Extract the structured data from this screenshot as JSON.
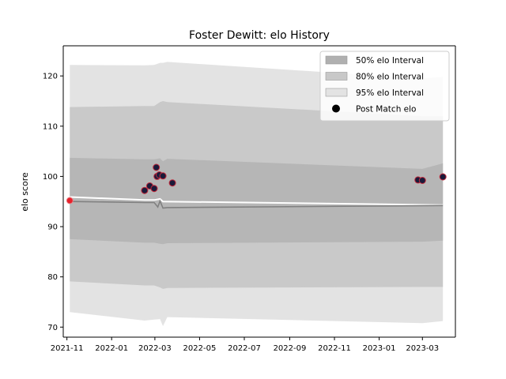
{
  "chart_data": {
    "type": "line",
    "title": "Foster Dewitt: elo History",
    "xlabel": "",
    "ylabel": "elo score",
    "x_ticks": [
      "2021-11",
      "2022-01",
      "2022-03",
      "2022-05",
      "2022-07",
      "2022-09",
      "2022-11",
      "2023-01",
      "2023-03"
    ],
    "y_ticks": [
      70,
      80,
      90,
      100,
      110,
      120
    ],
    "ylim": [
      68,
      126
    ],
    "xlim": [
      "2021-10-27",
      "2023-04-15"
    ],
    "legend_position": "top-right",
    "legend": [
      {
        "label": "50% elo Interval",
        "color": "#b0b0b0"
      },
      {
        "label": "80% elo Interval",
        "color": "#c8c8c8"
      },
      {
        "label": "95% elo Interval",
        "color": "#e3e3e3"
      },
      {
        "label": "Post Match elo",
        "color": "#000000"
      }
    ],
    "band_dates": [
      "2021-11-05",
      "2022-02-15",
      "2022-02-28",
      "2022-03-08",
      "2022-03-12",
      "2022-03-18",
      "2023-03-01",
      "2023-03-29"
    ],
    "bands": {
      "95": {
        "upper": [
          122.2,
          122.1,
          122.2,
          122.6,
          122.6,
          122.8,
          119.5,
          119.8
        ],
        "lower": [
          73.0,
          71.3,
          71.5,
          71.6,
          70.2,
          72.0,
          70.8,
          71.2
        ]
      },
      "80": {
        "upper": [
          113.8,
          114.0,
          114.0,
          114.8,
          115.0,
          114.8,
          112.0,
          112.0
        ],
        "lower": [
          79.1,
          78.3,
          78.3,
          77.9,
          77.6,
          77.8,
          78.0,
          78.0
        ]
      },
      "50": {
        "upper": [
          103.7,
          103.4,
          103.4,
          103.6,
          103.0,
          103.5,
          101.5,
          102.6
        ],
        "lower": [
          87.5,
          86.8,
          86.8,
          86.6,
          86.5,
          86.7,
          87.0,
          87.2
        ]
      }
    },
    "mean_line": {
      "dates": [
        "2021-11-05",
        "2022-02-15",
        "2022-02-28",
        "2022-03-05",
        "2022-03-08",
        "2022-03-12",
        "2022-03-18",
        "2023-03-29"
      ],
      "values": [
        95.0,
        94.8,
        94.8,
        93.9,
        95.1,
        93.7,
        93.8,
        94.2
      ]
    },
    "upper_line": {
      "dates": [
        "2021-11-05",
        "2022-02-15",
        "2022-02-28",
        "2022-03-08",
        "2022-03-12",
        "2023-03-29"
      ],
      "values": [
        95.9,
        95.3,
        95.3,
        95.5,
        95.0,
        94.3
      ]
    },
    "points": [
      {
        "date": "2021-11-05",
        "elo": 95.2,
        "highlight": true
      },
      {
        "date": "2022-02-15",
        "elo": 97.2
      },
      {
        "date": "2022-02-22",
        "elo": 98.1
      },
      {
        "date": "2022-02-28",
        "elo": 97.6
      },
      {
        "date": "2022-03-03",
        "elo": 101.8
      },
      {
        "date": "2022-03-04",
        "elo": 100.0
      },
      {
        "date": "2022-03-07",
        "elo": 100.3
      },
      {
        "date": "2022-03-12",
        "elo": 100.1
      },
      {
        "date": "2022-03-25",
        "elo": 98.7
      },
      {
        "date": "2023-02-23",
        "elo": 99.3
      },
      {
        "date": "2023-03-01",
        "elo": 99.2
      },
      {
        "date": "2023-03-29",
        "elo": 99.9
      }
    ]
  }
}
